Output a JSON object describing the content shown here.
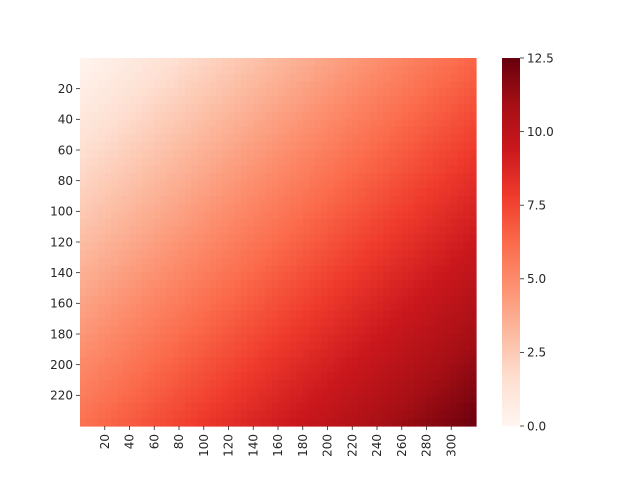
{
  "chart_data": {
    "type": "heatmap",
    "title": "",
    "xlabel": "",
    "ylabel": "",
    "colormap": "Reds",
    "x_range": [
      0,
      320
    ],
    "y_range": [
      0,
      240
    ],
    "x_ticks": [
      20,
      40,
      60,
      80,
      100,
      120,
      140,
      160,
      180,
      200,
      220,
      240,
      260,
      280,
      300
    ],
    "y_ticks": [
      20,
      40,
      60,
      80,
      100,
      120,
      140,
      160,
      180,
      200,
      220
    ],
    "x_tick_labels": [
      "20",
      "40",
      "60",
      "80",
      "100",
      "120",
      "140",
      "160",
      "180",
      "200",
      "220",
      "240",
      "260",
      "280",
      "300"
    ],
    "y_tick_labels": [
      "20",
      "40",
      "60",
      "80",
      "100",
      "120",
      "140",
      "160",
      "180",
      "200",
      "220"
    ],
    "value_model": "value = 0.02 * x + 0.025 * y",
    "corner_values": {
      "top_left": 0.0,
      "top_right": 6.4,
      "bottom_left": 6.0,
      "bottom_right": 12.4
    },
    "colorbar": {
      "min": 0.0,
      "max": 12.5,
      "ticks": [
        0.0,
        2.5,
        5.0,
        7.5,
        10.0,
        12.5
      ],
      "tick_labels": [
        "0.0",
        "2.5",
        "5.0",
        "7.5",
        "10.0",
        "12.5"
      ]
    }
  }
}
